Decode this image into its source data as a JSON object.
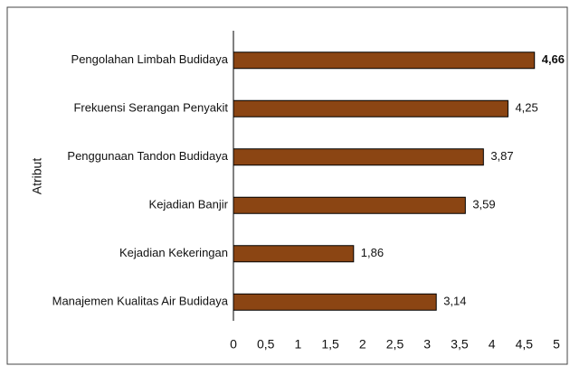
{
  "chart_data": {
    "type": "bar",
    "orientation": "horizontal",
    "y_axis_label": "Atribut",
    "categories": [
      "Pengolahan Limbah Budidaya",
      "Frekuensi Serangan Penyakit",
      "Penggunaan Tandon Budidaya",
      "Kejadian Banjir",
      "Kejadian Kekeringan",
      "Manajemen Kualitas Air Budidaya"
    ],
    "values": [
      4.66,
      4.25,
      3.87,
      3.59,
      1.86,
      3.14
    ],
    "value_labels": [
      "4,66",
      "4,25",
      "3,87",
      "3,59",
      "1,86",
      "3,14"
    ],
    "color": "#8b4513",
    "xlim": [
      0,
      5
    ],
    "xticks": [
      0,
      {
        "value": 0.5,
        "label": "0,5"
      },
      1,
      {
        "value": 1.5,
        "label": "1,5"
      },
      2,
      {
        "value": 2.5,
        "label": "2,5"
      },
      3,
      {
        "value": 3.5,
        "label": "3,5"
      },
      4,
      {
        "value": 4.5,
        "label": "4,5"
      },
      5
    ],
    "grid": false
  }
}
